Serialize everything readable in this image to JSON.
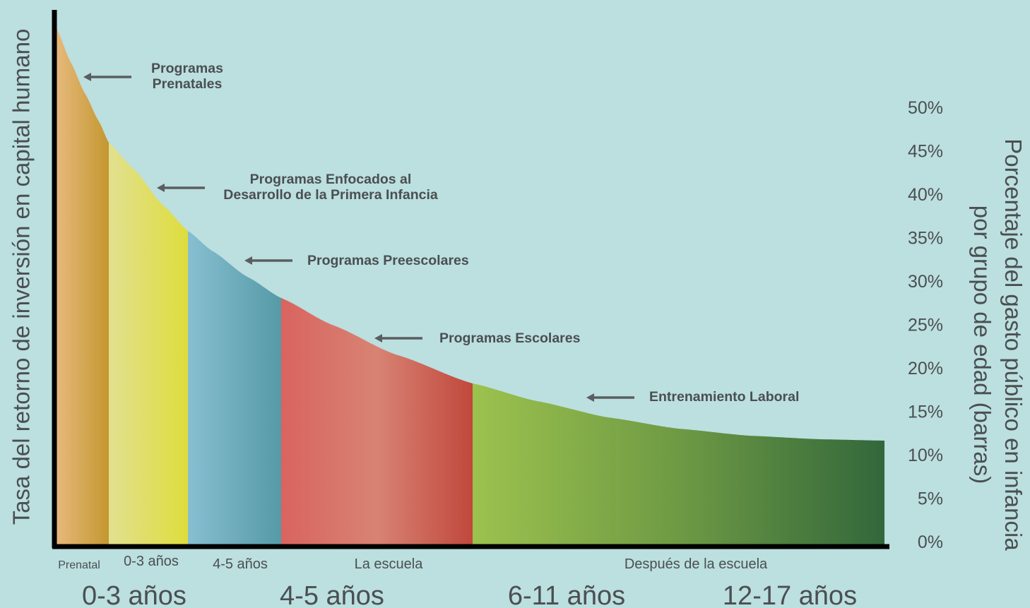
{
  "chart_data": {
    "type": "area",
    "ylabel_left": "Tasa del retorno de inversión en capital humano",
    "ylabel_right_lines": [
      "Porcentaje del gasto público en infancia",
      "por grupo de edad (barras)"
    ],
    "y_right_ticks": [
      "0%",
      "5%",
      "10%",
      "15%",
      "20%",
      "25%",
      "30%",
      "35%",
      "40%",
      "45%",
      "50%"
    ],
    "y_right_range": [
      0,
      50
    ],
    "curve": {
      "description_points": [
        {
          "segment_end": "Prenatal",
          "value": 46
        },
        {
          "segment_end": "0-3 años",
          "value": 36
        },
        {
          "segment_end": "4-5 años",
          "value": 28
        },
        {
          "segment_end": "La escuela",
          "value": 18.5
        },
        {
          "segment_end": "Después de la escuela",
          "value": 12
        }
      ]
    },
    "segments": [
      {
        "label": "Prenatal",
        "colors": [
          "#e6b97c",
          "#c4972f"
        ]
      },
      {
        "label": "0-3 años",
        "colors": [
          "#e2e090",
          "#dedd3c"
        ]
      },
      {
        "label": "4-5 años",
        "colors": [
          "#87bfd1",
          "#569aa7"
        ]
      },
      {
        "label": "La escuela",
        "colors": [
          "#d9645f",
          "#d88374",
          "#c0483c"
        ]
      },
      {
        "label": "Después de la escuela",
        "colors": [
          "#9cc24e",
          "#6e9a44",
          "#32673b"
        ]
      }
    ],
    "annotations": [
      {
        "lines": [
          "Programas",
          "Prenatales"
        ]
      },
      {
        "lines": [
          "Programas Enfocados al",
          "Desarrollo de la Primera Infancia"
        ]
      },
      {
        "lines": [
          "Programas Preescolares"
        ]
      },
      {
        "lines": [
          "Programas Escolares"
        ]
      },
      {
        "lines": [
          "Entrenamiento Laboral"
        ]
      }
    ],
    "age_groups": [
      "0-3 años",
      "4-5 años",
      "6-11 años",
      "12-17 años"
    ],
    "colors": {
      "background": "#bcdfdf",
      "axis": "#000000",
      "text": "#4a4f52",
      "arrow": "#5a5e61"
    }
  }
}
